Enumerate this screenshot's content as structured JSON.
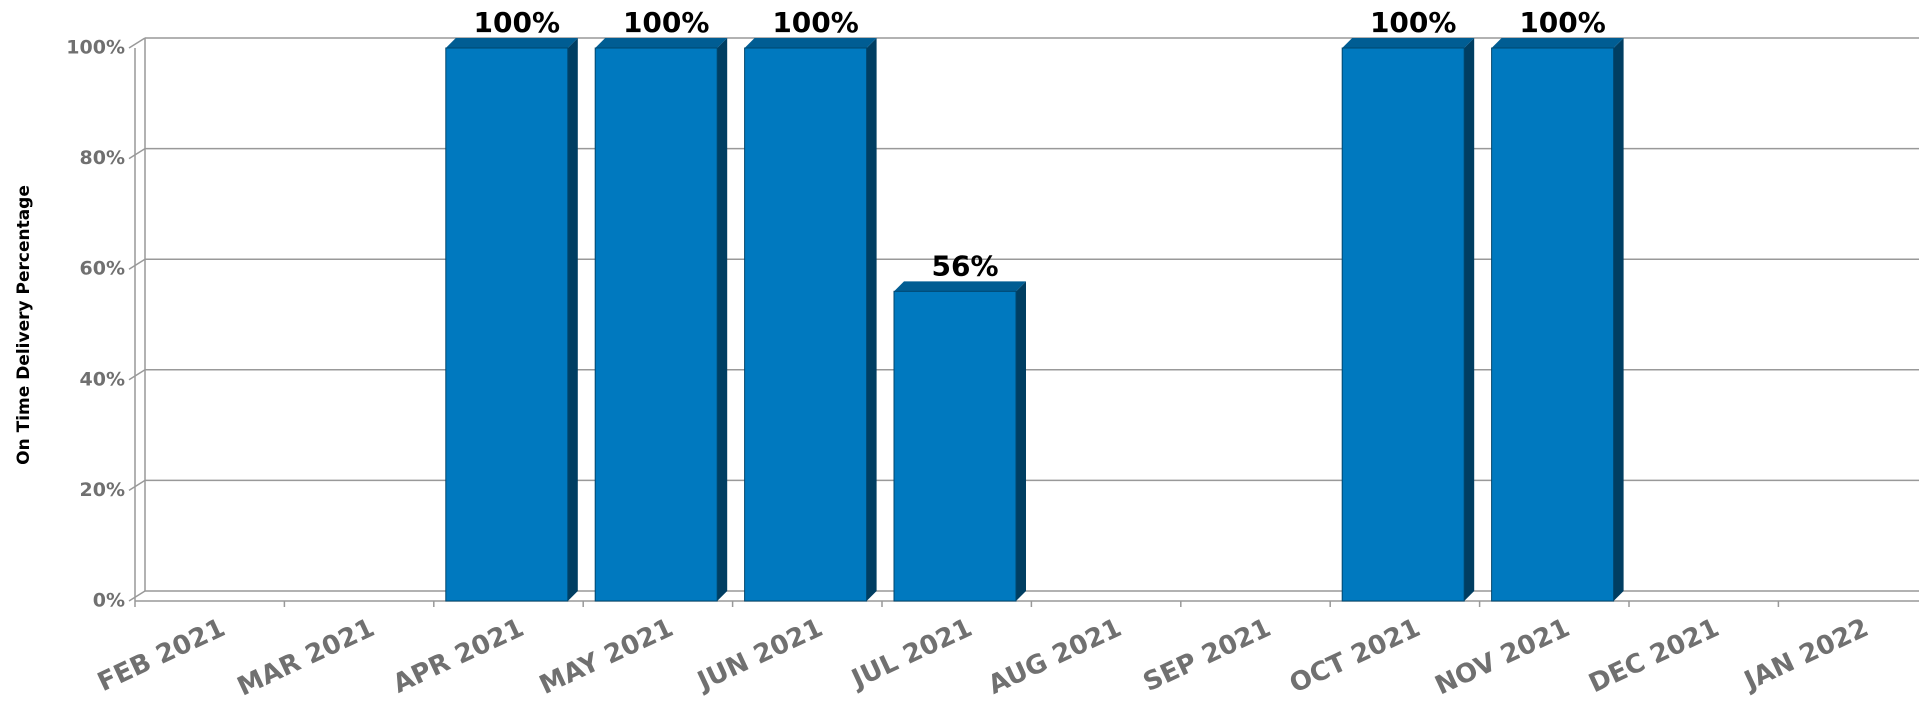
{
  "chart_data": {
    "type": "bar",
    "y_label": "On Time Delivery Percentage",
    "categories": [
      "FEB 2021",
      "MAR 2021",
      "APR 2021",
      "MAY 2021",
      "JUN 2021",
      "JUL 2021",
      "AUG 2021",
      "SEP 2021",
      "OCT 2021",
      "NOV 2021",
      "DEC 2021",
      "JAN 2022"
    ],
    "values": [
      null,
      null,
      100,
      100,
      100,
      56,
      null,
      null,
      100,
      100,
      null,
      null
    ],
    "value_labels": [
      null,
      null,
      "100%",
      "100%",
      "100%",
      "56%",
      null,
      null,
      "100%",
      "100%",
      null,
      null
    ],
    "color": "#0079bf",
    "ylim": [
      0,
      100
    ],
    "yticks": [
      {
        "value": 0,
        "label": "0%"
      },
      {
        "value": 20,
        "label": "20%"
      },
      {
        "value": 40,
        "label": "40%"
      },
      {
        "value": 60,
        "label": "60%"
      },
      {
        "value": 80,
        "label": "80%"
      },
      {
        "value": 100,
        "label": "100%"
      }
    ],
    "grid": true
  }
}
